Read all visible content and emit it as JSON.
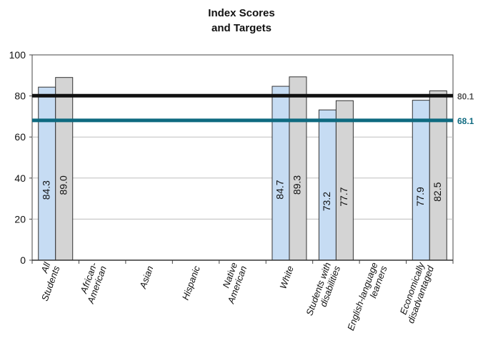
{
  "chart_data": {
    "type": "bar",
    "title": [
      "Index Scores",
      "and Targets"
    ],
    "categories": [
      [
        "All",
        "Students"
      ],
      [
        "African-",
        "American"
      ],
      [
        "Asian"
      ],
      [
        "Hispanic"
      ],
      [
        "Native",
        "American"
      ],
      [
        "White"
      ],
      [
        "Students with",
        "disabilities"
      ],
      [
        "English-language",
        "learners"
      ],
      [
        "Economically",
        "disadvantaged"
      ]
    ],
    "series": [
      {
        "values": [
          84.3,
          null,
          null,
          null,
          null,
          84.7,
          73.2,
          null,
          77.9
        ],
        "color": "#c6dcf3"
      },
      {
        "values": [
          89.0,
          null,
          null,
          null,
          null,
          89.3,
          77.7,
          null,
          82.5
        ],
        "color": "#d4d4d4"
      }
    ],
    "value_labels": [
      [
        "84.3",
        "",
        "",
        "",
        "",
        "84.7",
        "73.2",
        "",
        "77.9"
      ],
      [
        "89.0",
        "",
        "",
        "",
        "",
        "89.3",
        "77.7",
        "",
        "82.5"
      ]
    ],
    "reference_lines": [
      {
        "value": 80.1,
        "label": "80.1",
        "color": "#111111",
        "label_color": "#555555"
      },
      {
        "value": 68.1,
        "label": "68.1",
        "color": "#0e6a80",
        "label_color": "#0e6a80"
      }
    ],
    "y_ticks": [
      "0",
      "20",
      "40",
      "60",
      "80",
      "100"
    ],
    "ylim": [
      0,
      100
    ],
    "grid": true
  }
}
